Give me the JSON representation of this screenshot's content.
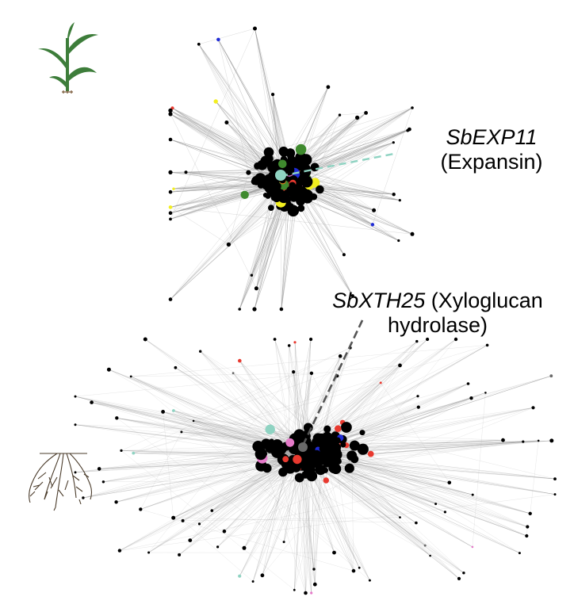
{
  "annotations": {
    "expansin": {
      "gene": "SbEXP11",
      "description": "(Expansin)"
    },
    "xyloglucan": {
      "gene": "SbXTH25",
      "description_line1": "(Xyloglucan",
      "description_line2": "hydrolase)"
    }
  },
  "colors": {
    "edge": "#9a9a9a",
    "node": "#000000",
    "node_red": "#e8392f",
    "node_blue": "#1f2bd6",
    "node_green": "#3f8a2e",
    "node_orange": "#e07a1f",
    "node_pink": "#e57ac9",
    "node_yellow": "#f2ee1f",
    "node_teal": "#8fd3c2",
    "node_grey": "#6a6a6a",
    "expansin_line": "#8fd3c2",
    "xyloglucan_line": "#555555",
    "plant_leaf": "#3d7d3a",
    "root": "#4a3b2a"
  },
  "icons": {
    "shoot": "sorghum-shoot-icon",
    "root": "root-system-icon"
  }
}
